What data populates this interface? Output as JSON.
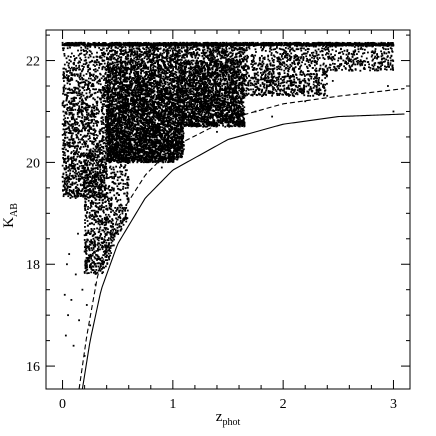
{
  "chart_data": {
    "type": "scatter",
    "title": "",
    "xlabel": {
      "main": "z",
      "sub": "phot"
    },
    "ylabel": {
      "main": "K",
      "sub": "AB"
    },
    "xlim": [
      -0.15,
      3.15
    ],
    "ylim": [
      15.55,
      22.6
    ],
    "x_ticks": [
      0,
      1,
      2,
      3
    ],
    "x_tick_labels": [
      "0",
      "1",
      "2",
      "3"
    ],
    "y_ticks": [
      16,
      18,
      20,
      22
    ],
    "y_tick_labels": [
      "16",
      "18",
      "20",
      "22"
    ],
    "x_minor_step": 0.2,
    "y_minor_step": 0.5,
    "grid": false,
    "legend": "none",
    "magnitude_limit": 22.35,
    "series": [
      {
        "style": "points",
        "density_regions": [
          {
            "x_range": [
              0.4,
              1.1
            ],
            "k_range": [
              20.0,
              22.35
            ],
            "count": 5200
          },
          {
            "x_range": [
              1.1,
              1.65
            ],
            "k_range": [
              20.7,
              22.35
            ],
            "count": 2600
          },
          {
            "x_range": [
              0.0,
              0.4
            ],
            "k_range": [
              19.3,
              22.35
            ],
            "count": 1500
          },
          {
            "x_range": [
              0.2,
              0.6
            ],
            "k_range": [
              17.8,
              20.3
            ],
            "count": 900
          },
          {
            "x_range": [
              1.65,
              2.4
            ],
            "k_range": [
              21.3,
              22.35
            ],
            "count": 900
          },
          {
            "x_range": [
              2.4,
              3.0
            ],
            "k_range": [
              21.8,
              22.35
            ],
            "count": 280
          }
        ],
        "sparse_points": [
          [
            0.03,
            16.6
          ],
          [
            0.05,
            17.0
          ],
          [
            0.08,
            17.3
          ],
          [
            0.1,
            16.4
          ],
          [
            0.12,
            17.8
          ],
          [
            0.15,
            16.9
          ],
          [
            0.18,
            17.5
          ],
          [
            0.2,
            16.2
          ],
          [
            0.06,
            18.2
          ],
          [
            0.14,
            18.6
          ],
          [
            0.22,
            17.2
          ],
          [
            0.25,
            16.8
          ],
          [
            0.3,
            17.6
          ],
          [
            0.33,
            18.1
          ],
          [
            0.28,
            18.5
          ],
          [
            0.5,
            19.1
          ],
          [
            0.9,
            19.9
          ],
          [
            1.4,
            20.6
          ],
          [
            1.75,
            21.0
          ],
          [
            2.1,
            21.3
          ],
          [
            2.45,
            21.6
          ],
          [
            2.7,
            21.8
          ],
          [
            2.95,
            21.5
          ],
          [
            3.0,
            21.0
          ],
          [
            2.9,
            22.1
          ],
          [
            2.6,
            21.9
          ],
          [
            2.2,
            21.2
          ],
          [
            1.9,
            20.9
          ],
          [
            0.02,
            17.4
          ],
          [
            0.04,
            18.0
          ]
        ]
      },
      {
        "style": "solid",
        "curve": [
          [
            0.18,
            15.55
          ],
          [
            0.25,
            16.5
          ],
          [
            0.35,
            17.5
          ],
          [
            0.5,
            18.4
          ],
          [
            0.75,
            19.3
          ],
          [
            1.0,
            19.85
          ],
          [
            1.5,
            20.45
          ],
          [
            2.0,
            20.75
          ],
          [
            2.5,
            20.9
          ],
          [
            3.1,
            20.95
          ]
        ]
      },
      {
        "style": "dashed",
        "curve": [
          [
            0.15,
            15.55
          ],
          [
            0.22,
            16.6
          ],
          [
            0.32,
            17.8
          ],
          [
            0.5,
            18.9
          ],
          [
            0.75,
            19.75
          ],
          [
            1.0,
            20.3
          ],
          [
            1.5,
            20.85
          ],
          [
            2.0,
            21.15
          ],
          [
            2.5,
            21.3
          ],
          [
            3.1,
            21.45
          ]
        ]
      }
    ]
  }
}
